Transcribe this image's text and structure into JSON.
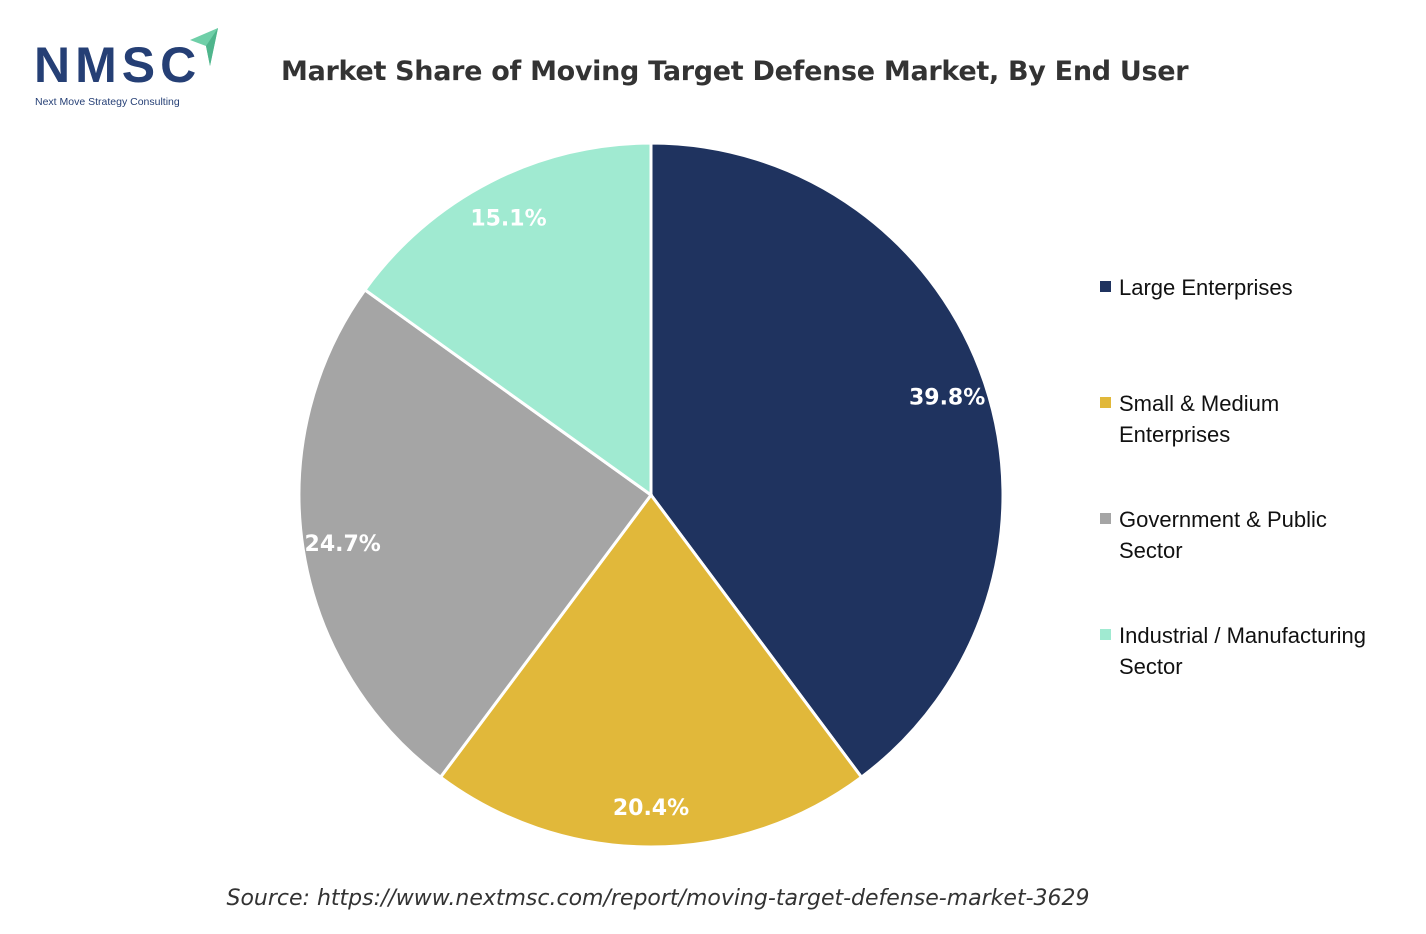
{
  "logo": {
    "text": "NMSC",
    "subtitle": "Next Move Strategy Consulting"
  },
  "chart_data": {
    "type": "pie",
    "title": "Market Share of Moving Target Defense Market, By End User",
    "categories": [
      "Large Enterprises",
      "Small & Medium Enterprises",
      "Government & Public Sector",
      "Industrial / Manufacturing Sector"
    ],
    "values": [
      39.8,
      20.4,
      24.7,
      15.1
    ],
    "data_labels": [
      "39.8%",
      "20.4%",
      "24.7%",
      "15.1%"
    ],
    "colors": [
      "#1f335f",
      "#e1b83a",
      "#a5a5a5",
      "#a0ead1"
    ],
    "legend_position": "right",
    "start_angle": "top, clockwise"
  },
  "source": "Source: https://www.nextmsc.com/report/moving-target-defense-market-3629"
}
